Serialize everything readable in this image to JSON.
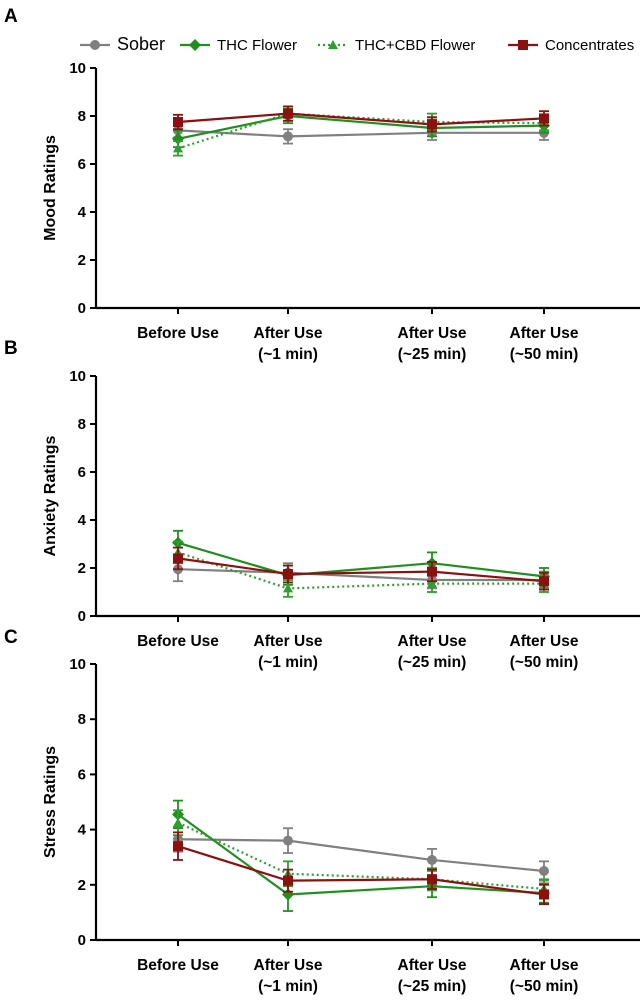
{
  "legend": [
    {
      "name": "Sober",
      "color": "#808080",
      "marker": "circle",
      "dash": "solid"
    },
    {
      "name": "THC Flower",
      "color": "#1f8f1f",
      "marker": "diamond",
      "dash": "solid"
    },
    {
      "name": "THC+CBD Flower",
      "color": "#2e9e2e",
      "marker": "triangle",
      "dash": "dotted"
    },
    {
      "name": "Concentrates",
      "color": "#8b1010",
      "marker": "square",
      "dash": "solid"
    }
  ],
  "chart_data": [
    {
      "panel": "A",
      "type": "line",
      "ylabel": "Mood Ratings",
      "ylim": [
        0,
        10
      ],
      "yticks": [
        0,
        2,
        4,
        6,
        8,
        10
      ],
      "categories": [
        [
          "Before Use"
        ],
        [
          "After Use",
          "(~1 min)"
        ],
        [
          "After Use",
          "(~25 min)"
        ],
        [
          "After Use",
          "(~50 min)"
        ]
      ],
      "series": [
        {
          "name": "Sober",
          "values": [
            7.4,
            7.15,
            7.3,
            7.3
          ],
          "err": [
            0.3,
            0.3,
            0.3,
            0.3
          ]
        },
        {
          "name": "THC Flower",
          "values": [
            7.05,
            8.0,
            7.5,
            7.6
          ],
          "err": [
            0.35,
            0.3,
            0.35,
            0.3
          ]
        },
        {
          "name": "THC+CBD Flower",
          "values": [
            6.65,
            8.1,
            7.75,
            7.7
          ],
          "err": [
            0.3,
            0.3,
            0.35,
            0.3
          ]
        },
        {
          "name": "Concentrates",
          "values": [
            7.75,
            8.1,
            7.65,
            7.9
          ],
          "err": [
            0.3,
            0.3,
            0.3,
            0.3
          ]
        }
      ]
    },
    {
      "panel": "B",
      "type": "line",
      "ylabel": "Anxiety Ratings",
      "ylim": [
        0,
        10
      ],
      "yticks": [
        0,
        2,
        4,
        6,
        8,
        10
      ],
      "categories": [
        [
          "Before Use"
        ],
        [
          "After Use",
          "(~1 min)"
        ],
        [
          "After Use",
          "(~25 min)"
        ],
        [
          "After Use",
          "(~50 min)"
        ]
      ],
      "series": [
        {
          "name": "Sober",
          "values": [
            1.95,
            1.8,
            1.5,
            1.5
          ],
          "err": [
            0.5,
            0.4,
            0.35,
            0.35
          ]
        },
        {
          "name": "THC Flower",
          "values": [
            3.05,
            1.7,
            2.2,
            1.65
          ],
          "err": [
            0.5,
            0.4,
            0.45,
            0.35
          ]
        },
        {
          "name": "THC+CBD Flower",
          "values": [
            2.65,
            1.15,
            1.35,
            1.35
          ],
          "err": [
            0.45,
            0.35,
            0.35,
            0.35
          ]
        },
        {
          "name": "Concentrates",
          "values": [
            2.4,
            1.75,
            1.85,
            1.45
          ],
          "err": [
            0.45,
            0.35,
            0.4,
            0.35
          ]
        }
      ]
    },
    {
      "panel": "C",
      "type": "line",
      "ylabel": "Stress Ratings",
      "ylim": [
        0,
        10
      ],
      "yticks": [
        0,
        2,
        4,
        6,
        8,
        10
      ],
      "categories": [
        [
          "Before Use"
        ],
        [
          "After Use",
          "(~1 min)"
        ],
        [
          "After Use",
          "(~25 min)"
        ],
        [
          "After Use",
          "(~50 min)"
        ]
      ],
      "series": [
        {
          "name": "Sober",
          "values": [
            3.65,
            3.6,
            2.9,
            2.5
          ],
          "err": [
            0.45,
            0.45,
            0.4,
            0.35
          ]
        },
        {
          "name": "THC Flower",
          "values": [
            4.55,
            1.65,
            1.95,
            1.7
          ],
          "err": [
            0.5,
            0.6,
            0.4,
            0.35
          ]
        },
        {
          "name": "THC+CBD Flower",
          "values": [
            4.25,
            2.4,
            2.2,
            1.85
          ],
          "err": [
            0.45,
            0.45,
            0.4,
            0.35
          ]
        },
        {
          "name": "Concentrates",
          "values": [
            3.4,
            2.15,
            2.2,
            1.65
          ],
          "err": [
            0.5,
            0.4,
            0.35,
            0.35
          ]
        }
      ]
    }
  ]
}
